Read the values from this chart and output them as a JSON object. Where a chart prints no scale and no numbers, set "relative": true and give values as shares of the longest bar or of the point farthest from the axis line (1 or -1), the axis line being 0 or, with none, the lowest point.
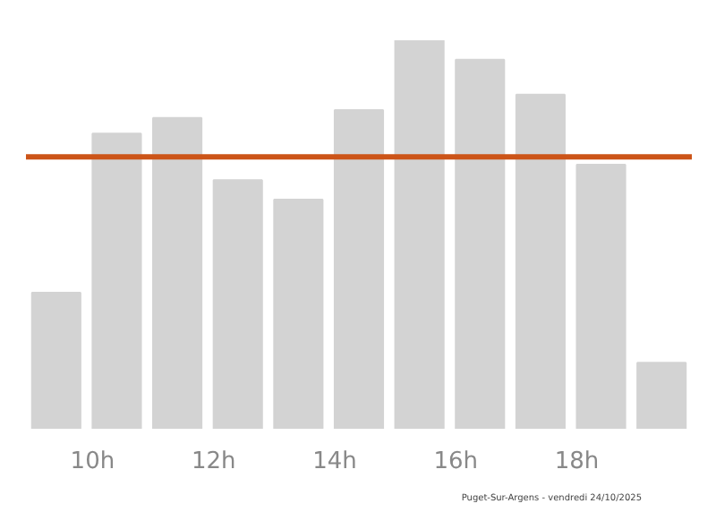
{
  "chart_data": {
    "type": "bar",
    "relative": true,
    "categories": [
      null,
      "10h",
      null,
      "12h",
      null,
      "14h",
      null,
      "16h",
      null,
      "18h",
      null
    ],
    "values": [
      0.35,
      0.76,
      0.8,
      0.64,
      0.59,
      0.82,
      1,
      0.95,
      0.86,
      0.68,
      0.17
    ],
    "color": "#d3d3d3",
    "ref_lines": [
      {
        "axis": "y",
        "value": 0.7,
        "label": null,
        "color": "#cc5418"
      }
    ],
    "annotations": [
      "Puget-Sur-Argens - vendredi 24/10/2025"
    ],
    "grid": false
  }
}
